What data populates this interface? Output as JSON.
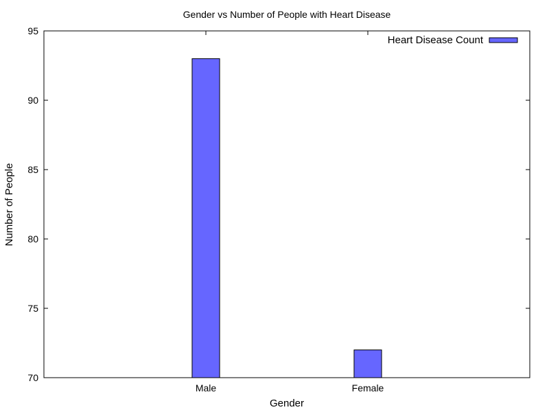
{
  "chart_data": {
    "type": "bar",
    "title": "Gender vs Number of People with Heart Disease",
    "xlabel": "Gender",
    "ylabel": "Number of People",
    "categories": [
      "Male",
      "Female"
    ],
    "series": [
      {
        "name": "Heart Disease Count",
        "values": [
          93,
          72
        ],
        "color": "#6666ff"
      }
    ],
    "ylim": [
      70,
      95
    ],
    "yticks": [
      "70",
      "75",
      "80",
      "85",
      "90",
      "95"
    ],
    "xlim": [
      -1,
      2
    ],
    "grid": false,
    "legend_position": "top-right"
  }
}
